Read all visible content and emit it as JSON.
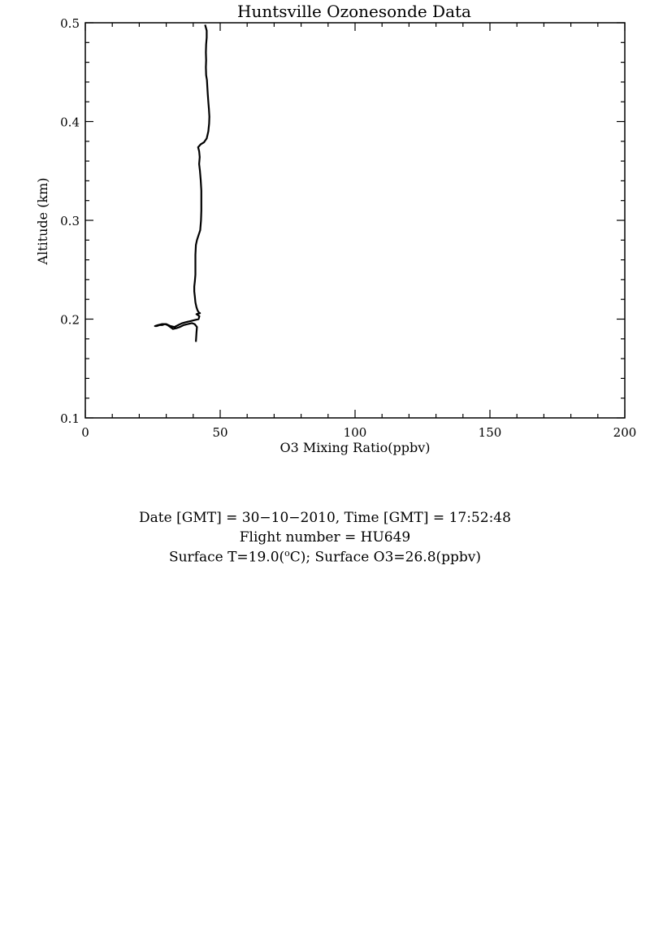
{
  "chart_data": {
    "type": "line",
    "title": "Huntsville Ozonesonde Data",
    "xlabel": "O3 Mixing Ratio(ppbv)",
    "ylabel": "Altitude (km)",
    "xlim": [
      0,
      200
    ],
    "ylim": [
      0.1,
      0.5
    ],
    "xticks": [
      0,
      50,
      100,
      150,
      200
    ],
    "yticks": [
      0.1,
      0.2,
      0.3,
      0.4,
      0.5
    ],
    "xtick_labels": [
      "0",
      "50",
      "100",
      "150",
      "200"
    ],
    "ytick_labels": [
      "0.1",
      "0.2",
      "0.3",
      "0.4",
      "0.5"
    ],
    "grid": false,
    "line_color": "#000000",
    "series": [
      {
        "points": [
          [
            41,
            0.177
          ],
          [
            41.2,
            0.186
          ],
          [
            41.4,
            0.192
          ],
          [
            40.5,
            0.195
          ],
          [
            39.5,
            0.196
          ],
          [
            38,
            0.195
          ],
          [
            36.5,
            0.194
          ],
          [
            35,
            0.192
          ],
          [
            34,
            0.191
          ],
          [
            32.5,
            0.19
          ],
          [
            31.5,
            0.192
          ],
          [
            30.5,
            0.194
          ],
          [
            29.5,
            0.195
          ],
          [
            28.5,
            0.194
          ],
          [
            27.5,
            0.194
          ],
          [
            26.5,
            0.193
          ],
          [
            25.8,
            0.193
          ],
          [
            27,
            0.194
          ],
          [
            28.5,
            0.195
          ],
          [
            30,
            0.195
          ],
          [
            31.5,
            0.193
          ],
          [
            33,
            0.192
          ],
          [
            34.5,
            0.194
          ],
          [
            36,
            0.196
          ],
          [
            37.5,
            0.197
          ],
          [
            39,
            0.198
          ],
          [
            40.5,
            0.199
          ],
          [
            42,
            0.2
          ],
          [
            42.3,
            0.203
          ],
          [
            41.2,
            0.205
          ],
          [
            42.5,
            0.206
          ],
          [
            42,
            0.207
          ],
          [
            41.6,
            0.209
          ],
          [
            41.2,
            0.212
          ],
          [
            40.8,
            0.217
          ],
          [
            40.6,
            0.223
          ],
          [
            40.4,
            0.228
          ],
          [
            40.4,
            0.233
          ],
          [
            40.6,
            0.238
          ],
          [
            40.8,
            0.245
          ],
          [
            40.8,
            0.255
          ],
          [
            40.8,
            0.265
          ],
          [
            41,
            0.275
          ],
          [
            41.4,
            0.28
          ],
          [
            42,
            0.285
          ],
          [
            42.6,
            0.29
          ],
          [
            42.9,
            0.3
          ],
          [
            43,
            0.31
          ],
          [
            43,
            0.32
          ],
          [
            43,
            0.33
          ],
          [
            42.8,
            0.34
          ],
          [
            42.5,
            0.35
          ],
          [
            42.2,
            0.357
          ],
          [
            42.4,
            0.364
          ],
          [
            42.2,
            0.37
          ],
          [
            41.8,
            0.374
          ],
          [
            42.8,
            0.377
          ],
          [
            44,
            0.379
          ],
          [
            45,
            0.383
          ],
          [
            45.6,
            0.39
          ],
          [
            45.9,
            0.398
          ],
          [
            46,
            0.405
          ],
          [
            45.8,
            0.413
          ],
          [
            45.6,
            0.42
          ],
          [
            45.4,
            0.428
          ],
          [
            45.2,
            0.436
          ],
          [
            45.1,
            0.442
          ],
          [
            44.8,
            0.447
          ],
          [
            44.7,
            0.455
          ],
          [
            44.8,
            0.462
          ],
          [
            44.7,
            0.47
          ],
          [
            44.8,
            0.478
          ],
          [
            45.0,
            0.485
          ],
          [
            45.0,
            0.492
          ],
          [
            44.6,
            0.496
          ],
          [
            44.4,
            0.498
          ]
        ]
      }
    ]
  },
  "info": {
    "date_line": "Date [GMT] = 30−10−2010,  Time [GMT] = 17:52:48",
    "flight_line": "Flight number = HU649",
    "surface_t_prefix": "Surface T=19.0(",
    "surface_t_sup": "o",
    "surface_t_suffix": "C); Surface O3=26.8(ppbv)"
  }
}
